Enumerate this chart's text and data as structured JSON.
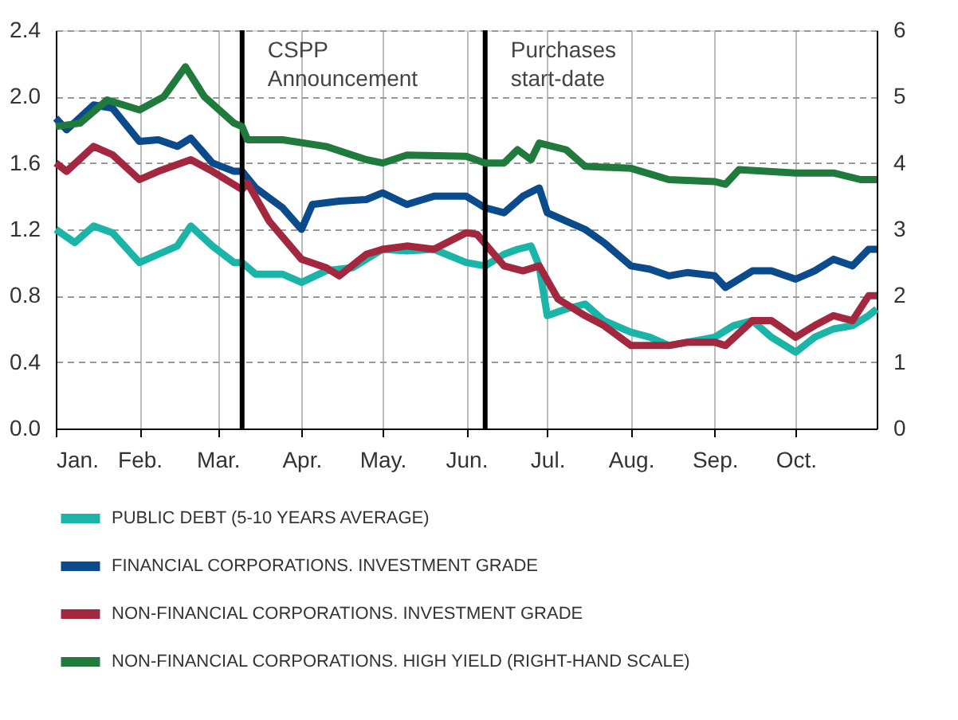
{
  "chart_data": {
    "type": "line",
    "xlim": [
      "--01-01",
      "--10-31"
    ],
    "xticks": [
      {
        "value": "--01-01",
        "label": "Jan."
      },
      {
        "value": "--02-01",
        "label": "Feb."
      },
      {
        "value": "--03-01",
        "label": "Mar."
      },
      {
        "value": "--04-01",
        "label": "Apr."
      },
      {
        "value": "--05-01",
        "label": "May."
      },
      {
        "value": "--06-01",
        "label": "Jun."
      },
      {
        "value": "--07-01",
        "label": "Jul."
      },
      {
        "value": "--08-01",
        "label": "Aug."
      },
      {
        "value": "--09-01",
        "label": "Sep."
      },
      {
        "value": "--10-01",
        "label": "Oct."
      }
    ],
    "ylim": [
      0,
      2.4
    ],
    "yticks": [
      {
        "value": 0,
        "label": "0.0"
      },
      0.4,
      0.8,
      1.2,
      1.6,
      {
        "value": 2,
        "label": "2.0"
      },
      2.4
    ],
    "y2lim": [
      0,
      6
    ],
    "y2ticks": [
      0,
      1,
      2,
      3,
      4,
      5,
      6
    ],
    "grid": true,
    "legend": "bottom",
    "line_style": "solid",
    "marker": "none",
    "ref_lines": [
      {
        "axis": "x",
        "value": "--03-10",
        "label": "CSPP Announcement",
        "color": "#000000"
      },
      {
        "axis": "x",
        "value": "--06-08",
        "label": "Purchases start-date",
        "color": "#000000"
      }
    ],
    "series": [
      {
        "name": "PUBLIC DEBT (5-10 YEARS AVERAGE)",
        "color": "#1ab5a8",
        "x": [
          "--01-01",
          "--01-08",
          "--01-15",
          "--01-22",
          "--02-01",
          "--02-08",
          "--02-15",
          "--02-20",
          "--02-28",
          "--03-07",
          "--03-10",
          "--03-15",
          "--03-25",
          "--04-01",
          "--04-10",
          "--04-20",
          "--05-01",
          "--05-10",
          "--05-20",
          "--06-01",
          "--06-08",
          "--06-15",
          "--06-20",
          "--06-25",
          "--06-28",
          "--07-01",
          "--07-08",
          "--07-15",
          "--07-22",
          "--08-01",
          "--08-08",
          "--08-15",
          "--08-22",
          "--09-01",
          "--09-08",
          "--09-15",
          "--09-22",
          "--10-01",
          "--10-08",
          "--10-15",
          "--10-22",
          "--10-28",
          "--10-31"
        ],
        "values": [
          1.2,
          1.12,
          1.22,
          1.18,
          1.0,
          1.05,
          1.1,
          1.22,
          1.1,
          1.0,
          1.0,
          0.93,
          0.93,
          0.88,
          0.95,
          0.97,
          1.08,
          1.07,
          1.08,
          1.0,
          0.98,
          1.05,
          1.08,
          1.1,
          0.98,
          0.68,
          0.72,
          0.75,
          0.65,
          0.58,
          0.55,
          0.5,
          0.52,
          0.55,
          0.62,
          0.65,
          0.55,
          0.46,
          0.55,
          0.6,
          0.62,
          0.68,
          0.72
        ]
      },
      {
        "name": "FINANCIAL CORPORATIONS. INVESTMENT GRADE",
        "color": "#0b4a8b",
        "x": [
          "--01-01",
          "--01-05",
          "--01-15",
          "--01-22",
          "--02-01",
          "--02-08",
          "--02-15",
          "--02-20",
          "--02-28",
          "--03-07",
          "--03-10",
          "--03-15",
          "--03-25",
          "--04-01",
          "--04-05",
          "--04-15",
          "--04-25",
          "--05-01",
          "--05-10",
          "--05-20",
          "--06-01",
          "--06-08",
          "--06-15",
          "--06-22",
          "--06-28",
          "--07-01",
          "--07-08",
          "--07-15",
          "--07-22",
          "--08-01",
          "--08-08",
          "--08-15",
          "--08-22",
          "--09-01",
          "--09-05",
          "--09-15",
          "--09-22",
          "--10-01",
          "--10-08",
          "--10-15",
          "--10-22",
          "--10-28",
          "--10-31"
        ],
        "values": [
          1.87,
          1.8,
          1.95,
          1.93,
          1.73,
          1.74,
          1.7,
          1.75,
          1.6,
          1.55,
          1.55,
          1.45,
          1.33,
          1.2,
          1.35,
          1.37,
          1.38,
          1.42,
          1.35,
          1.4,
          1.4,
          1.33,
          1.3,
          1.4,
          1.45,
          1.3,
          1.25,
          1.2,
          1.12,
          0.98,
          0.96,
          0.92,
          0.94,
          0.92,
          0.85,
          0.95,
          0.95,
          0.9,
          0.95,
          1.02,
          0.98,
          1.08,
          1.08
        ]
      },
      {
        "name": "NON-FINANCIAL CORPORATIONS. INVESTMENT GRADE",
        "color": "#a3283f",
        "x": [
          "--01-01",
          "--01-05",
          "--01-15",
          "--01-22",
          "--02-01",
          "--02-08",
          "--02-20",
          "--02-28",
          "--03-07",
          "--03-10",
          "--03-12",
          "--03-20",
          "--04-01",
          "--04-10",
          "--04-15",
          "--04-25",
          "--05-01",
          "--05-10",
          "--05-20",
          "--06-01",
          "--06-05",
          "--06-15",
          "--06-22",
          "--06-28",
          "--07-05",
          "--07-15",
          "--07-22",
          "--08-01",
          "--08-08",
          "--08-15",
          "--08-22",
          "--09-01",
          "--09-05",
          "--09-15",
          "--09-22",
          "--10-01",
          "--10-08",
          "--10-15",
          "--10-22",
          "--10-28",
          "--10-31"
        ],
        "values": [
          1.6,
          1.55,
          1.7,
          1.65,
          1.5,
          1.55,
          1.62,
          1.55,
          1.47,
          1.44,
          1.48,
          1.25,
          1.02,
          0.97,
          0.92,
          1.05,
          1.08,
          1.1,
          1.08,
          1.18,
          1.17,
          0.98,
          0.95,
          0.98,
          0.78,
          0.68,
          0.62,
          0.5,
          0.5,
          0.5,
          0.52,
          0.52,
          0.5,
          0.65,
          0.65,
          0.55,
          0.62,
          0.68,
          0.65,
          0.8,
          0.8
        ]
      },
      {
        "name": "NON-FINANCIAL CORPORATIONS. HIGH YIELD (RIGHT-HAND SCALE)",
        "color": "#1f7a3c",
        "axis": "y2",
        "x": [
          "--01-01",
          "--01-10",
          "--01-20",
          "--02-01",
          "--02-10",
          "--02-18",
          "--02-25",
          "--03-07",
          "--03-10",
          "--03-12",
          "--03-25",
          "--04-10",
          "--04-25",
          "--05-01",
          "--05-10",
          "--06-01",
          "--06-08",
          "--06-15",
          "--06-20",
          "--06-25",
          "--06-28",
          "--07-08",
          "--07-15",
          "--08-01",
          "--08-15",
          "--09-01",
          "--09-05",
          "--09-10",
          "--10-01",
          "--10-15",
          "--10-25",
          "--10-31"
        ],
        "values": [
          4.55,
          4.6,
          4.95,
          4.8,
          5.0,
          5.45,
          5.0,
          4.6,
          4.55,
          4.35,
          4.35,
          4.25,
          4.05,
          4.0,
          4.12,
          4.1,
          4.0,
          4.0,
          4.2,
          4.05,
          4.3,
          4.2,
          3.95,
          3.92,
          3.75,
          3.72,
          3.68,
          3.9,
          3.85,
          3.85,
          3.75,
          3.75
        ]
      }
    ]
  }
}
